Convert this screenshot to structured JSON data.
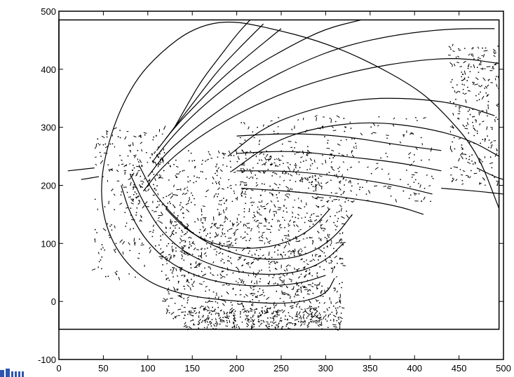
{
  "chart_data": {
    "type": "contour",
    "title": "",
    "xlabel": "",
    "ylabel": "",
    "xlim": [
      0,
      500
    ],
    "ylim": [
      -100,
      500
    ],
    "xticks": [
      0,
      50,
      100,
      150,
      200,
      250,
      300,
      350,
      400,
      450,
      500
    ],
    "yticks": [
      -100,
      0,
      100,
      200,
      300,
      400,
      500
    ],
    "grid": false,
    "legend": "none",
    "inner_frame": {
      "x": [
        0,
        495
      ],
      "y": [
        -48,
        485
      ]
    },
    "line_color": "#000000",
    "contours": [
      {
        "name": "outer-boundary",
        "points": [
          [
            495,
            160
          ],
          [
            470,
            260
          ],
          [
            430,
            330
          ],
          [
            400,
            370
          ],
          [
            340,
            420
          ],
          [
            290,
            450
          ],
          [
            240,
            470
          ],
          [
            190,
            485
          ],
          [
            150,
            470
          ],
          [
            115,
            430
          ],
          [
            85,
            380
          ],
          [
            60,
            300
          ],
          [
            45,
            200
          ],
          [
            55,
            110
          ],
          [
            90,
            40
          ],
          [
            140,
            10
          ],
          [
            200,
            0
          ],
          [
            260,
            -5
          ],
          [
            300,
            10
          ],
          [
            310,
            40
          ]
        ]
      },
      {
        "name": "arc-1",
        "points": [
          [
            130,
            300
          ],
          [
            145,
            340
          ],
          [
            160,
            380
          ],
          [
            180,
            420
          ],
          [
            200,
            460
          ],
          [
            215,
            485
          ]
        ]
      },
      {
        "name": "arc-2",
        "points": [
          [
            120,
            280
          ],
          [
            140,
            320
          ],
          [
            160,
            360
          ],
          [
            180,
            400
          ],
          [
            205,
            440
          ],
          [
            230,
            478
          ]
        ]
      },
      {
        "name": "arc-3",
        "points": [
          [
            110,
            260
          ],
          [
            130,
            300
          ],
          [
            155,
            340
          ],
          [
            180,
            380
          ],
          [
            210,
            420
          ],
          [
            250,
            470
          ]
        ]
      },
      {
        "name": "arc-4",
        "points": [
          [
            105,
            240
          ],
          [
            125,
            280
          ],
          [
            150,
            320
          ],
          [
            180,
            360
          ],
          [
            215,
            400
          ],
          [
            260,
            440
          ],
          [
            300,
            470
          ],
          [
            340,
            485
          ]
        ]
      },
      {
        "name": "arc-5",
        "points": [
          [
            100,
            215
          ],
          [
            120,
            255
          ],
          [
            150,
            295
          ],
          [
            185,
            335
          ],
          [
            225,
            375
          ],
          [
            270,
            410
          ],
          [
            320,
            440
          ],
          [
            380,
            460
          ],
          [
            440,
            470
          ],
          [
            490,
            470
          ]
        ]
      },
      {
        "name": "arc-6",
        "points": [
          [
            95,
            190
          ],
          [
            115,
            230
          ],
          [
            145,
            270
          ],
          [
            185,
            310
          ],
          [
            230,
            345
          ],
          [
            280,
            375
          ],
          [
            340,
            400
          ],
          [
            400,
            415
          ],
          [
            450,
            420
          ],
          [
            495,
            410
          ]
        ]
      },
      {
        "name": "arc-7",
        "points": [
          [
            190,
            250
          ],
          [
            230,
            300
          ],
          [
            280,
            330
          ],
          [
            340,
            350
          ],
          [
            400,
            350
          ],
          [
            450,
            340
          ],
          [
            490,
            320
          ]
        ]
      },
      {
        "name": "arc-8",
        "points": [
          [
            195,
            225
          ],
          [
            240,
            275
          ],
          [
            290,
            300
          ],
          [
            350,
            310
          ],
          [
            410,
            300
          ],
          [
            460,
            280
          ],
          [
            495,
            250
          ]
        ]
      },
      {
        "name": "band-1",
        "points": [
          [
            200,
            285
          ],
          [
            260,
            290
          ],
          [
            320,
            285
          ],
          [
            380,
            270
          ],
          [
            430,
            260
          ]
        ]
      },
      {
        "name": "band-2",
        "points": [
          [
            200,
            255
          ],
          [
            260,
            260
          ],
          [
            320,
            250
          ],
          [
            380,
            240
          ],
          [
            430,
            225
          ]
        ]
      },
      {
        "name": "band-3",
        "points": [
          [
            200,
            225
          ],
          [
            260,
            225
          ],
          [
            320,
            215
          ],
          [
            380,
            200
          ],
          [
            420,
            185
          ]
        ]
      },
      {
        "name": "band-4",
        "points": [
          [
            205,
            195
          ],
          [
            260,
            190
          ],
          [
            320,
            180
          ],
          [
            380,
            165
          ],
          [
            410,
            150
          ]
        ]
      },
      {
        "name": "inner-1",
        "points": [
          [
            70,
            200
          ],
          [
            80,
            150
          ],
          [
            100,
            100
          ],
          [
            130,
            60
          ],
          [
            170,
            35
          ],
          [
            220,
            25
          ],
          [
            270,
            30
          ],
          [
            300,
            45
          ]
        ]
      },
      {
        "name": "inner-2",
        "points": [
          [
            80,
            220
          ],
          [
            95,
            170
          ],
          [
            115,
            120
          ],
          [
            145,
            80
          ],
          [
            185,
            55
          ],
          [
            230,
            45
          ],
          [
            270,
            50
          ],
          [
            300,
            70
          ],
          [
            320,
            100
          ]
        ]
      },
      {
        "name": "inner-3",
        "points": [
          [
            90,
            235
          ],
          [
            105,
            190
          ],
          [
            130,
            145
          ],
          [
            160,
            105
          ],
          [
            200,
            80
          ],
          [
            240,
            70
          ],
          [
            280,
            80
          ],
          [
            310,
            110
          ],
          [
            330,
            150
          ]
        ]
      },
      {
        "name": "inner-4",
        "points": [
          [
            120,
            160
          ],
          [
            145,
            120
          ],
          [
            180,
            95
          ],
          [
            220,
            90
          ],
          [
            255,
            100
          ],
          [
            285,
            125
          ],
          [
            305,
            160
          ]
        ]
      },
      {
        "name": "stray-1",
        "points": [
          [
            10,
            225
          ],
          [
            40,
            230
          ]
        ]
      },
      {
        "name": "stray-2",
        "points": [
          [
            430,
            195
          ],
          [
            470,
            190
          ],
          [
            500,
            185
          ]
        ]
      },
      {
        "name": "stray-3",
        "points": [
          [
            470,
            230
          ],
          [
            490,
            215
          ],
          [
            500,
            210
          ]
        ]
      },
      {
        "name": "stray-4",
        "points": [
          [
            25,
            210
          ],
          [
            45,
            215
          ]
        ]
      }
    ],
    "scatter_regions": [
      {
        "x": [
          120,
          320
        ],
        "y": [
          -40,
          140
        ],
        "count": 900
      },
      {
        "x": [
          80,
          330
        ],
        "y": [
          140,
          260
        ],
        "count": 500
      },
      {
        "x": [
          40,
          120
        ],
        "y": [
          40,
          300
        ],
        "count": 200
      },
      {
        "x": [
          140,
          320
        ],
        "y": [
          -48,
          -10
        ],
        "count": 250
      },
      {
        "x": [
          440,
          495
        ],
        "y": [
          200,
          440
        ],
        "count": 250
      },
      {
        "x": [
          200,
          420
        ],
        "y": [
          170,
          320
        ],
        "count": 250
      }
    ]
  }
}
